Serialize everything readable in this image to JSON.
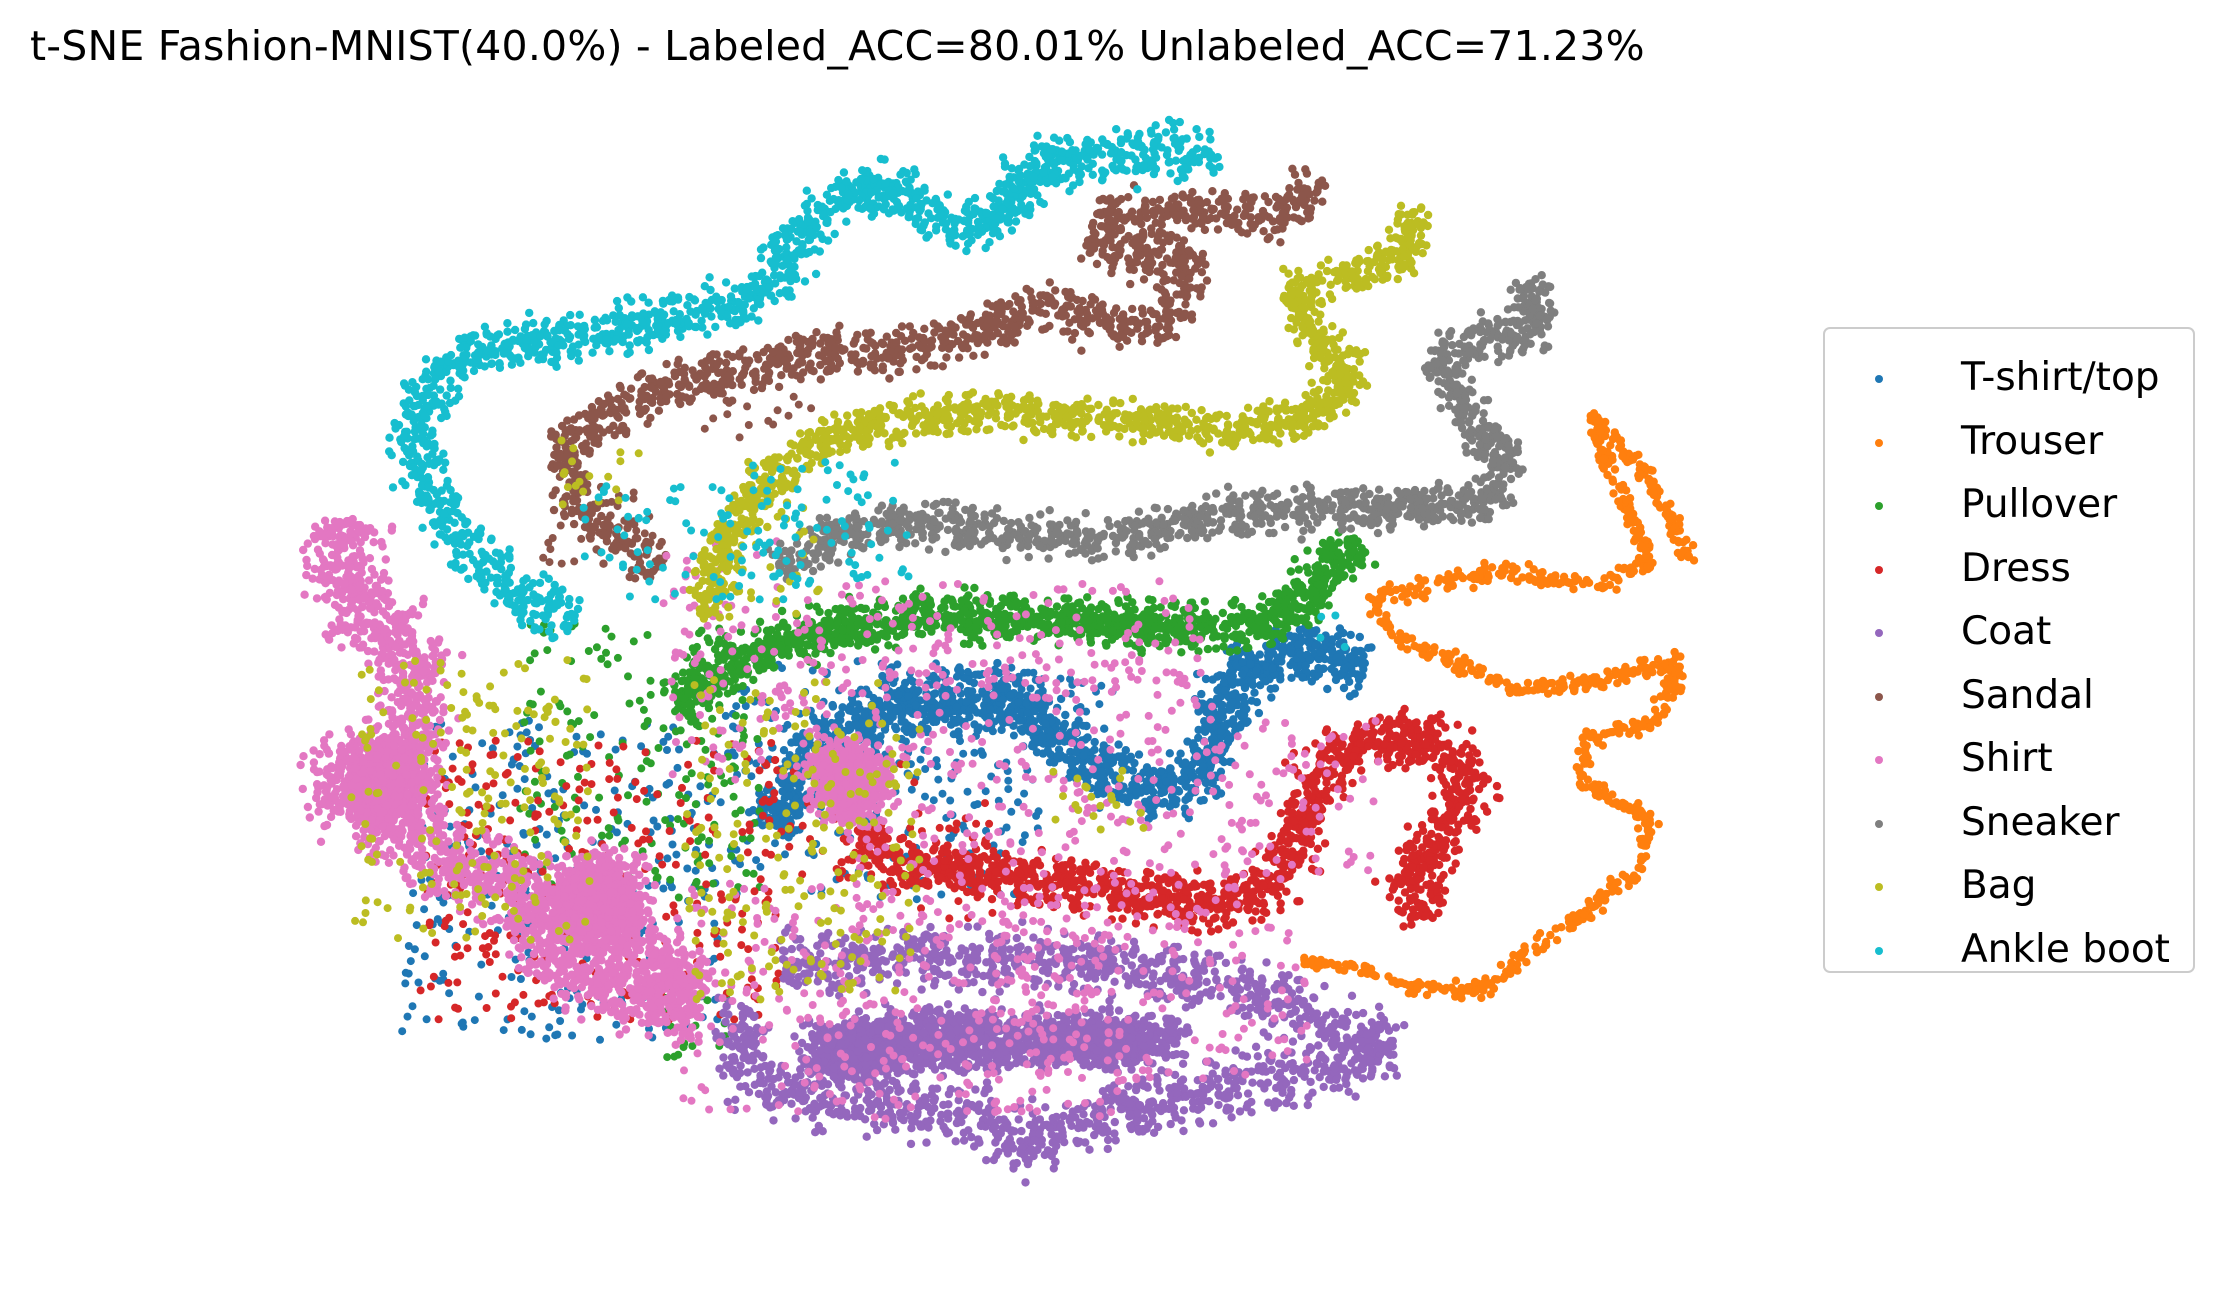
{
  "chart_data": {
    "type": "scatter",
    "title": "t-SNE Fashion-MNIST(40.0%) - Labeled_ACC=80.01% Unlabeled_ACC=71.23%",
    "xlabel": "",
    "ylabel": "",
    "grid": false,
    "axes_visible": false,
    "legend_position": "right",
    "series": [
      {
        "name": "T-shirt/top",
        "color": "#1f77b4"
      },
      {
        "name": "Trouser",
        "color": "#ff7f0e"
      },
      {
        "name": "Pullover",
        "color": "#2ca02c"
      },
      {
        "name": "Dress",
        "color": "#d62728"
      },
      {
        "name": "Coat",
        "color": "#9467bd"
      },
      {
        "name": "Sandal",
        "color": "#8c564b"
      },
      {
        "name": "Shirt",
        "color": "#e377c2"
      },
      {
        "name": "Sneaker",
        "color": "#7f7f7f"
      },
      {
        "name": "Bag",
        "color": "#bcbd22"
      },
      {
        "name": "Ankle boot",
        "color": "#17becf"
      }
    ]
  }
}
